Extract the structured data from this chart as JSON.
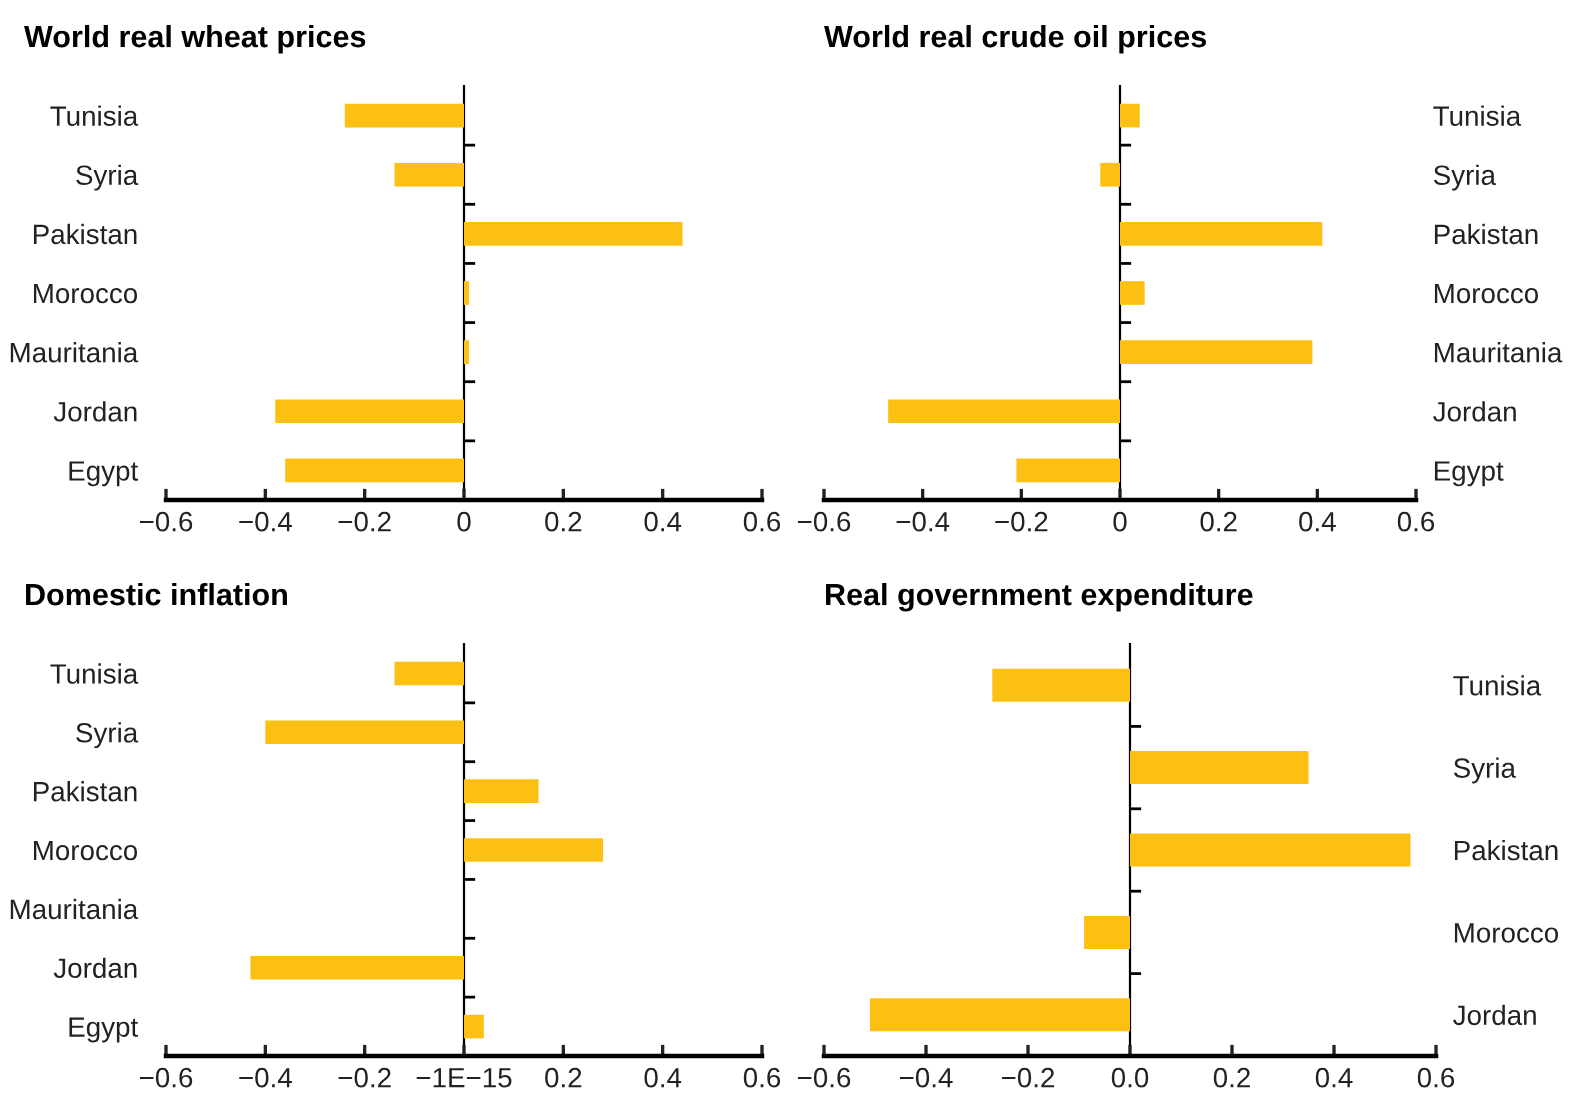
{
  "chart_data": [
    {
      "type": "bar",
      "orientation": "horizontal",
      "title": "World real wheat prices",
      "categories": [
        "Tunisia",
        "Syria",
        "Pakistan",
        "Morocco",
        "Mauritania",
        "Jordan",
        "Egypt"
      ],
      "values": [
        -0.24,
        -0.14,
        0.44,
        0.01,
        0.01,
        -0.38,
        -0.36
      ],
      "color": "#fcc013",
      "xlim": [
        -0.6,
        0.6
      ],
      "xticks": [
        -0.6,
        -0.4,
        -0.2,
        0,
        0.2,
        0.4,
        0.6
      ]
    },
    {
      "type": "bar",
      "orientation": "horizontal",
      "title": "World real crude oil prices",
      "categories": [
        "Tunisia",
        "Syria",
        "Pakistan",
        "Morocco",
        "Mauritania",
        "Jordan",
        "Egypt"
      ],
      "values": [
        0.04,
        -0.04,
        0.41,
        0.05,
        0.39,
        -0.47,
        -0.21
      ],
      "color": "#fcc013",
      "xlim": [
        -0.6,
        0.6
      ],
      "xticks": [
        -0.6,
        -0.4,
        -0.2,
        0,
        0.2,
        0.4,
        0.6
      ]
    },
    {
      "type": "bar",
      "orientation": "horizontal",
      "title": "Domestic inflation",
      "categories": [
        "Tunisia",
        "Syria",
        "Pakistan",
        "Morocco",
        "Mauritania",
        "Jordan",
        "Egypt"
      ],
      "values": [
        -0.14,
        -0.4,
        0.15,
        0.28,
        null,
        -0.43,
        0.04
      ],
      "color": "#fcc013",
      "xlim": [
        -0.6,
        0.6
      ],
      "xticks": [
        -0.6,
        -0.4,
        -0.2,
        {
          "value": 0,
          "label": "−1E−15"
        },
        0.2,
        0.4,
        0.6
      ]
    },
    {
      "type": "bar",
      "orientation": "horizontal",
      "title": "Real government expenditure",
      "categories": [
        "Tunisia",
        "Syria",
        "Pakistan",
        "Morocco",
        "Jordan"
      ],
      "values": [
        -0.27,
        0.35,
        0.55,
        -0.09,
        -0.51
      ],
      "color": "#fcc013",
      "xlim": [
        -0.6,
        0.6
      ],
      "xticks": [
        -0.6,
        -0.4,
        -0.2,
        {
          "value": 0,
          "label": "0.0"
        },
        0.2,
        0.4,
        0.6
      ]
    }
  ]
}
